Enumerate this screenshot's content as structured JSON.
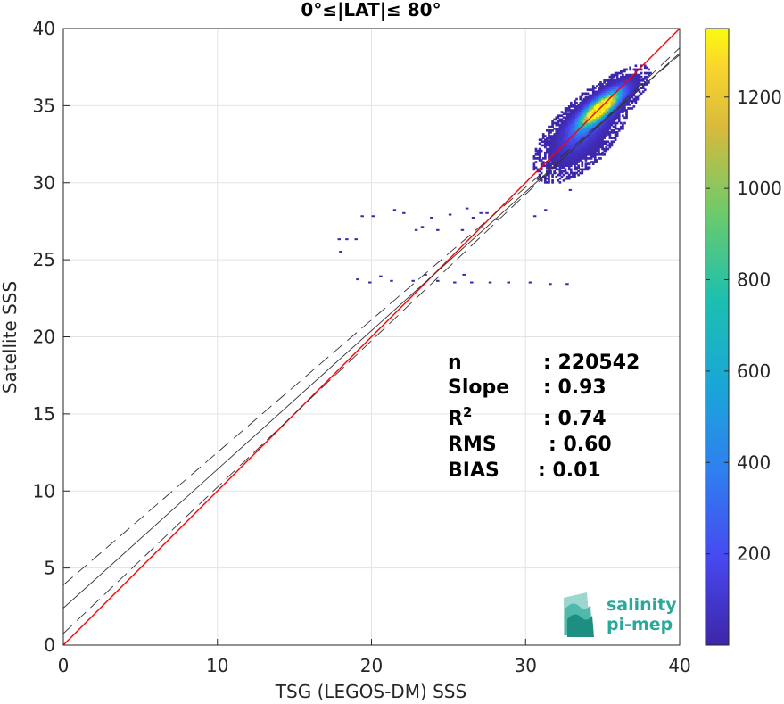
{
  "chart_data": {
    "type": "scatter",
    "title": "0°≤|LAT|≤ 80°",
    "xlabel": "TSG (LEGOS-DM) SSS",
    "ylabel": "Satellite SSS",
    "xlim": [
      0,
      40
    ],
    "ylim": [
      0,
      40
    ],
    "xticks": [
      0,
      10,
      20,
      30,
      40
    ],
    "yticks": [
      0,
      5,
      10,
      15,
      20,
      25,
      30,
      35,
      40
    ],
    "grid": true,
    "density_clusters": [
      {
        "x": 35.0,
        "y": 35.0,
        "sx": 1.25,
        "sy": 1.05,
        "rho": 0.8,
        "weight": 0.7
      },
      {
        "x": 33.5,
        "y": 33.0,
        "sx": 1.5,
        "sy": 1.5,
        "rho": 0.6,
        "weight": 0.3
      }
    ],
    "sparse_points": [
      [
        32.8,
        29.5
      ],
      [
        31.2,
        28.2
      ],
      [
        30.5,
        27.8
      ],
      [
        28.0,
        27.6
      ],
      [
        27.0,
        28.0
      ],
      [
        26.5,
        27.7
      ],
      [
        25.0,
        27.9
      ],
      [
        23.8,
        27.7
      ],
      [
        22.0,
        28.0
      ],
      [
        21.4,
        28.2
      ],
      [
        20.0,
        27.8
      ],
      [
        19.3,
        27.8
      ],
      [
        25.8,
        26.9
      ],
      [
        24.2,
        26.9
      ],
      [
        22.8,
        26.9
      ],
      [
        17.8,
        26.3
      ],
      [
        18.3,
        26.3
      ],
      [
        18.9,
        26.3
      ],
      [
        17.9,
        25.5
      ],
      [
        19.0,
        23.7
      ],
      [
        19.8,
        23.5
      ],
      [
        21.2,
        23.6
      ],
      [
        22.6,
        23.6
      ],
      [
        24.2,
        23.6
      ],
      [
        25.3,
        23.5
      ],
      [
        26.4,
        23.5
      ],
      [
        27.6,
        23.5
      ],
      [
        28.8,
        23.5
      ],
      [
        30.2,
        23.5
      ],
      [
        31.5,
        23.4
      ],
      [
        32.6,
        23.4
      ],
      [
        20.5,
        23.9
      ],
      [
        23.4,
        24.0
      ],
      [
        25.9,
        24.0
      ],
      [
        27.4,
        28.0
      ],
      [
        26.1,
        28.3
      ],
      [
        23.2,
        27.1
      ],
      [
        30.9,
        30.2
      ],
      [
        31.8,
        30.6
      ]
    ],
    "reference_lines": [
      {
        "name": "identity",
        "slope": 1.0,
        "intercept": 0.0,
        "color": "#ff0000",
        "style": "solid"
      },
      {
        "name": "fit",
        "slope": 0.9,
        "intercept": 2.4,
        "color": "#333333",
        "style": "solid"
      },
      {
        "name": "fit-upper",
        "slope": 0.86,
        "intercept": 3.9,
        "color": "#333333",
        "style": "dashed"
      },
      {
        "name": "fit-lower",
        "slope": 0.95,
        "intercept": 0.75,
        "color": "#333333",
        "style": "dashed"
      }
    ],
    "colorbar": {
      "colormap": "parula",
      "range": [
        0,
        1350
      ],
      "ticks": [
        200,
        400,
        600,
        800,
        1000,
        1200
      ]
    },
    "stats": [
      {
        "label": "n",
        "sup": "",
        "value": ": 220542"
      },
      {
        "label": "Slope",
        "sup": "",
        "value": ": 0.93"
      },
      {
        "label": "R",
        "sup": "2",
        "value": ": 0.74"
      },
      {
        "label": "RMS",
        "sup": "",
        "value": ": 0.60"
      },
      {
        "label": "BIAS",
        "sup": "",
        "value": ": 0.01"
      }
    ]
  },
  "logo": {
    "line1": "salinity",
    "line2": "pi-mep",
    "color": "#2aa89a"
  }
}
